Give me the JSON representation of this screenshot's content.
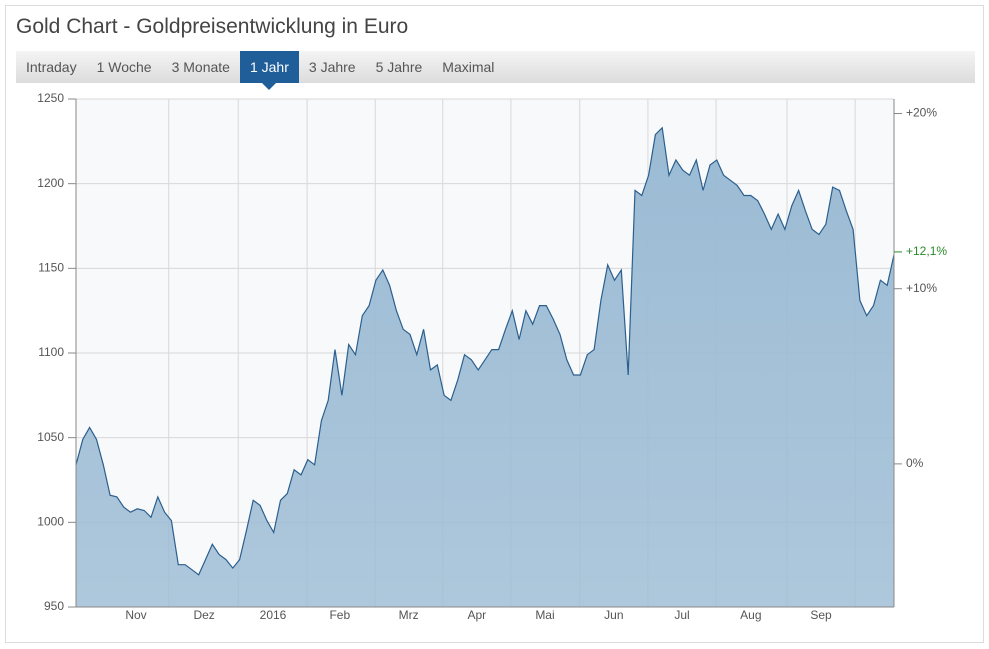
{
  "header": {
    "title": "Gold Chart - Goldpreisentwicklung in Euro"
  },
  "tabs": [
    "Intraday",
    "1 Woche",
    "3 Monate",
    "1 Jahr",
    "3 Jahre",
    "5 Jahre",
    "Maximal"
  ],
  "active_tab": 3,
  "chart_data": {
    "type": "area",
    "values": [
      1034,
      1049,
      1056,
      1049,
      1034,
      1016,
      1015,
      1009,
      1006,
      1008,
      1007,
      1003,
      1015,
      1006,
      1001,
      975,
      975,
      972,
      969,
      978,
      987,
      981,
      978,
      973,
      978,
      995,
      1013,
      1010,
      1001,
      994,
      1013,
      1017,
      1031,
      1028,
      1037,
      1034,
      1060,
      1072,
      1102,
      1075,
      1105,
      1099,
      1122,
      1128,
      1143,
      1149,
      1140,
      1125,
      1114,
      1111,
      1099,
      1114,
      1090,
      1093,
      1075,
      1072,
      1084,
      1099,
      1096,
      1090,
      1096,
      1102,
      1102,
      1114,
      1125,
      1108,
      1125,
      1117,
      1128,
      1128,
      1120,
      1111,
      1096,
      1087,
      1087,
      1099,
      1102,
      1131,
      1152,
      1143,
      1149,
      1087,
      1196,
      1193,
      1205,
      1229,
      1233,
      1205,
      1214,
      1208,
      1205,
      1214,
      1196,
      1211,
      1214,
      1205,
      1202,
      1199,
      1193,
      1193,
      1190,
      1182,
      1173,
      1182,
      1173,
      1187,
      1196,
      1184,
      1173,
      1170,
      1176,
      1198,
      1196,
      1184,
      1173,
      1131,
      1122,
      1128,
      1143,
      1140,
      1158
    ],
    "color": "#2b5f8e",
    "fill_color": "#9bbbd4",
    "xlim": [
      0,
      120
    ],
    "xticks": [
      {
        "value": 8.8,
        "label": "Nov"
      },
      {
        "value": 18.8,
        "label": "Dez"
      },
      {
        "value": 28.9,
        "label": "2016"
      },
      {
        "value": 38.7,
        "label": "Feb"
      },
      {
        "value": 48.8,
        "label": "Mrz"
      },
      {
        "value": 58.8,
        "label": "Apr"
      },
      {
        "value": 68.8,
        "label": "Mai"
      },
      {
        "value": 78.9,
        "label": "Jun"
      },
      {
        "value": 88.9,
        "label": "Jul"
      },
      {
        "value": 99,
        "label": "Aug"
      },
      {
        "value": 109.3,
        "label": "Sep"
      }
    ],
    "xgrid": [
      13.6,
      23.8,
      33.9,
      43.9,
      53.8,
      63.8,
      73.9,
      83.9,
      93.9,
      104.3,
      114.3
    ],
    "ylim": [
      950,
      1250
    ],
    "yticks": [
      950,
      1000,
      1050,
      1100,
      1150,
      1200,
      1250
    ],
    "y2lim": [
      -8.17,
      20.83
    ],
    "y2ticks": [
      {
        "value": 0,
        "label": "0%"
      },
      {
        "value": 10,
        "label": "+10%"
      },
      {
        "value": 20,
        "label": "+20%"
      }
    ],
    "last_change": {
      "value": 12.1,
      "label": "+12,1%",
      "color": "#2a8a2a"
    },
    "grid": true
  }
}
